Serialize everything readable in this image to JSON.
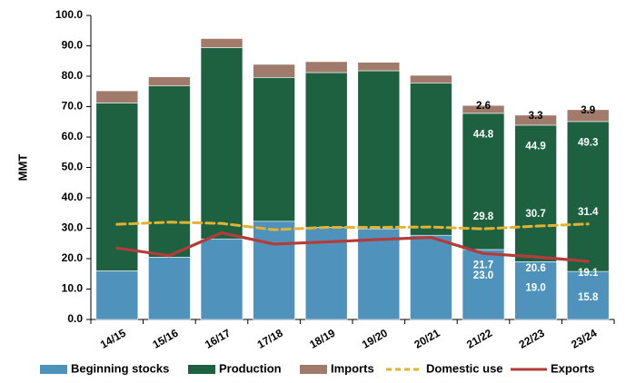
{
  "chart_data": {
    "type": "bar",
    "stacked": true,
    "ylabel": "MMT",
    "xlabel": "",
    "ylim": [
      0,
      100
    ],
    "yticks": [
      "0.0",
      "10.0",
      "20.0",
      "30.0",
      "40.0",
      "50.0",
      "60.0",
      "70.0",
      "80.0",
      "90.0",
      "100.0"
    ],
    "grid": false,
    "legend_position": "bottom",
    "categories": [
      "14/15",
      "15/16",
      "16/17",
      "17/18",
      "18/19",
      "19/20",
      "20/21",
      "21/22",
      "22/23",
      "23/24"
    ],
    "series": [
      {
        "name": "Beginning stocks",
        "kind": "bar",
        "color": "#4f92bc",
        "values": [
          16.0,
          20.5,
          26.5,
          32.3,
          30.3,
          29.8,
          27.7,
          23.0,
          19.0,
          15.8
        ]
      },
      {
        "name": "Production",
        "kind": "bar",
        "color": "#1e6141",
        "values": [
          55.2,
          56.3,
          62.9,
          47.3,
          50.9,
          52.0,
          50.0,
          44.8,
          44.9,
          49.3
        ]
      },
      {
        "name": "Imports",
        "kind": "bar",
        "color": "#a07a6a",
        "values": [
          4.0,
          3.0,
          3.0,
          4.3,
          3.6,
          2.8,
          2.6,
          2.6,
          3.3,
          3.9
        ]
      },
      {
        "name": "Domestic use",
        "kind": "line",
        "style": "dashed",
        "color": "#e3b233",
        "values": [
          31.3,
          32.0,
          31.6,
          29.5,
          30.3,
          30.3,
          30.4,
          29.8,
          30.7,
          31.4
        ]
      },
      {
        "name": "Exports",
        "kind": "line",
        "style": "solid",
        "color": "#b33c3a",
        "values": [
          23.5,
          21.0,
          28.5,
          24.8,
          25.5,
          26.3,
          27.0,
          21.7,
          20.6,
          19.1
        ]
      }
    ],
    "data_labels": [
      {
        "category": "21/22",
        "series": "Beginning stocks",
        "text": "23.0"
      },
      {
        "category": "22/23",
        "series": "Beginning stocks",
        "text": "19.0"
      },
      {
        "category": "23/24",
        "series": "Beginning stocks",
        "text": "15.8"
      },
      {
        "category": "21/22",
        "series": "Production",
        "text": "44.8"
      },
      {
        "category": "22/23",
        "series": "Production",
        "text": "44.9"
      },
      {
        "category": "23/24",
        "series": "Production",
        "text": "49.3"
      },
      {
        "category": "21/22",
        "series": "Imports",
        "text": "2.6"
      },
      {
        "category": "22/23",
        "series": "Imports",
        "text": "3.3"
      },
      {
        "category": "23/24",
        "series": "Imports",
        "text": "3.9"
      },
      {
        "category": "21/22",
        "series": "Domestic use",
        "text": "29.8"
      },
      {
        "category": "22/23",
        "series": "Domestic use",
        "text": "30.7"
      },
      {
        "category": "23/24",
        "series": "Domestic use",
        "text": "31.4"
      },
      {
        "category": "21/22",
        "series": "Exports",
        "text": "21.7"
      },
      {
        "category": "22/23",
        "series": "Exports",
        "text": "20.6"
      },
      {
        "category": "23/24",
        "series": "Exports",
        "text": "19.1"
      }
    ]
  }
}
